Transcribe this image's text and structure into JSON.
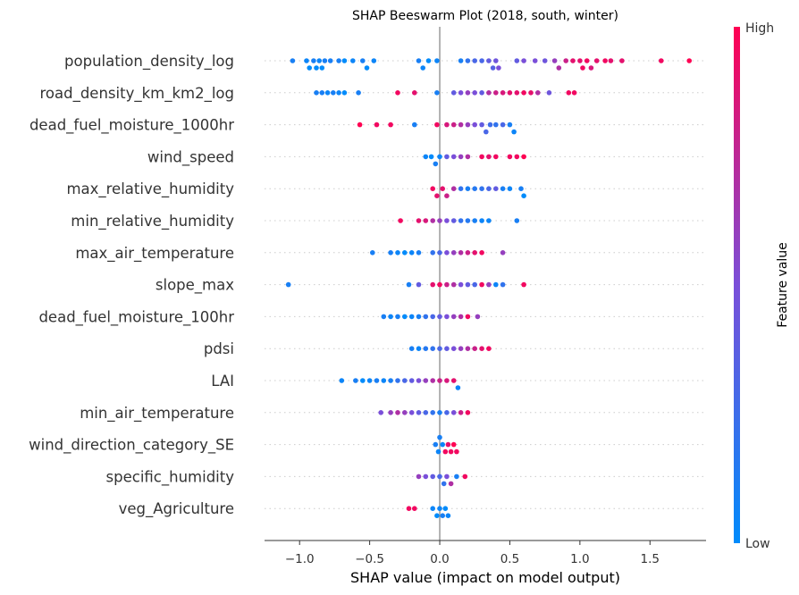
{
  "chart_data": {
    "type": "scatter",
    "subtype": "shap-beeswarm",
    "title": "SHAP Beeswarm Plot (2018, south, winter)",
    "xlabel": "SHAP value (impact on model output)",
    "xlim": [
      -1.25,
      1.9
    ],
    "xticks": [
      -1.0,
      -0.5,
      0.0,
      0.5,
      1.0,
      1.5
    ],
    "xtick_labels": [
      "−1.0",
      "−0.5",
      "0.0",
      "0.5",
      "1.0",
      "1.5"
    ],
    "colorbar": {
      "title": "Feature value",
      "high_label": "High",
      "low_label": "Low"
    },
    "colors": {
      "low": "#008bfb",
      "high": "#ff0052",
      "zero_line": "#999999"
    },
    "features": [
      {
        "name": "population_density_log",
        "points": [
          [
            -1.05,
            0.1
          ],
          [
            -0.95,
            0.05
          ],
          [
            -0.93,
            0.0
          ],
          [
            -0.9,
            0.1
          ],
          [
            -0.88,
            0.0
          ],
          [
            -0.86,
            0.05
          ],
          [
            -0.84,
            0.0
          ],
          [
            -0.82,
            0.1
          ],
          [
            -0.78,
            0.1
          ],
          [
            -0.72,
            0.1
          ],
          [
            -0.68,
            0.0
          ],
          [
            -0.62,
            0.05
          ],
          [
            -0.55,
            0.1
          ],
          [
            -0.52,
            0.0
          ],
          [
            -0.47,
            0.05
          ],
          [
            -0.15,
            0.1
          ],
          [
            -0.12,
            0.05
          ],
          [
            -0.08,
            0.0
          ],
          [
            -0.02,
            0.05
          ],
          [
            0.15,
            0.1
          ],
          [
            0.2,
            0.2
          ],
          [
            0.25,
            0.3
          ],
          [
            0.3,
            0.3
          ],
          [
            0.35,
            0.4
          ],
          [
            0.38,
            0.35
          ],
          [
            0.4,
            0.45
          ],
          [
            0.42,
            0.5
          ],
          [
            0.55,
            0.4
          ],
          [
            0.6,
            0.5
          ],
          [
            0.68,
            0.5
          ],
          [
            0.75,
            0.45
          ],
          [
            0.82,
            0.6
          ],
          [
            0.85,
            0.7
          ],
          [
            0.9,
            0.8
          ],
          [
            0.95,
            0.9
          ],
          [
            1.0,
            0.9
          ],
          [
            1.02,
            0.95
          ],
          [
            1.05,
            0.95
          ],
          [
            1.08,
            0.85
          ],
          [
            1.12,
            0.9
          ],
          [
            1.18,
            0.95
          ],
          [
            1.22,
            0.9
          ],
          [
            1.3,
            0.9
          ],
          [
            1.58,
            0.95
          ],
          [
            1.78,
            1.0
          ]
        ]
      },
      {
        "name": "road_density_km_km2_log",
        "points": [
          [
            -0.88,
            0.1
          ],
          [
            -0.84,
            0.1
          ],
          [
            -0.8,
            0.05
          ],
          [
            -0.76,
            0.1
          ],
          [
            -0.72,
            0.05
          ],
          [
            -0.68,
            0.0
          ],
          [
            -0.58,
            0.1
          ],
          [
            -0.3,
            0.95
          ],
          [
            -0.18,
            0.9
          ],
          [
            -0.02,
            0.1
          ],
          [
            0.1,
            0.4
          ],
          [
            0.15,
            0.5
          ],
          [
            0.2,
            0.6
          ],
          [
            0.25,
            0.5
          ],
          [
            0.3,
            0.4
          ],
          [
            0.35,
            0.7
          ],
          [
            0.4,
            0.8
          ],
          [
            0.45,
            0.85
          ],
          [
            0.5,
            0.9
          ],
          [
            0.55,
            0.9
          ],
          [
            0.6,
            0.95
          ],
          [
            0.65,
            0.9
          ],
          [
            0.7,
            0.7
          ],
          [
            0.78,
            0.45
          ],
          [
            0.92,
            0.95
          ],
          [
            0.96,
            0.95
          ]
        ]
      },
      {
        "name": "dead_fuel_moisture_1000hr",
        "points": [
          [
            -0.57,
            1.0
          ],
          [
            -0.45,
            0.95
          ],
          [
            -0.35,
            0.95
          ],
          [
            -0.18,
            0.1
          ],
          [
            -0.02,
            0.95
          ],
          [
            0.05,
            0.85
          ],
          [
            0.1,
            0.8
          ],
          [
            0.15,
            0.7
          ],
          [
            0.2,
            0.6
          ],
          [
            0.25,
            0.5
          ],
          [
            0.3,
            0.4
          ],
          [
            0.33,
            0.3
          ],
          [
            0.36,
            0.25
          ],
          [
            0.4,
            0.2
          ],
          [
            0.45,
            0.3
          ],
          [
            0.5,
            0.1
          ],
          [
            0.53,
            0.05
          ]
        ]
      },
      {
        "name": "wind_speed",
        "points": [
          [
            -0.1,
            0.05
          ],
          [
            -0.06,
            0.0
          ],
          [
            -0.03,
            0.1
          ],
          [
            0.0,
            0.05
          ],
          [
            0.05,
            0.4
          ],
          [
            0.1,
            0.5
          ],
          [
            0.15,
            0.6
          ],
          [
            0.2,
            0.7
          ],
          [
            0.3,
            0.95
          ],
          [
            0.35,
            0.9
          ],
          [
            0.4,
            0.95
          ],
          [
            0.5,
            0.95
          ],
          [
            0.55,
            0.95
          ],
          [
            0.6,
            1.0
          ]
        ]
      },
      {
        "name": "max_relative_humidity",
        "points": [
          [
            -0.05,
            0.95
          ],
          [
            -0.02,
            0.9
          ],
          [
            0.02,
            0.9
          ],
          [
            0.05,
            0.8
          ],
          [
            0.1,
            0.7
          ],
          [
            0.15,
            0.2
          ],
          [
            0.2,
            0.1
          ],
          [
            0.25,
            0.15
          ],
          [
            0.3,
            0.2
          ],
          [
            0.35,
            0.3
          ],
          [
            0.4,
            0.4
          ],
          [
            0.45,
            0.1
          ],
          [
            0.5,
            0.05
          ],
          [
            0.58,
            0.1
          ],
          [
            0.6,
            0.0
          ]
        ]
      },
      {
        "name": "min_relative_humidity",
        "points": [
          [
            -0.28,
            0.95
          ],
          [
            -0.15,
            0.9
          ],
          [
            -0.1,
            0.85
          ],
          [
            -0.05,
            0.7
          ],
          [
            0.0,
            0.6
          ],
          [
            0.05,
            0.5
          ],
          [
            0.1,
            0.4
          ],
          [
            0.15,
            0.2
          ],
          [
            0.2,
            0.15
          ],
          [
            0.25,
            0.1
          ],
          [
            0.3,
            0.05
          ],
          [
            0.35,
            0.05
          ],
          [
            0.55,
            0.1
          ]
        ]
      },
      {
        "name": "max_air_temperature",
        "points": [
          [
            -0.48,
            0.1
          ],
          [
            -0.35,
            0.1
          ],
          [
            -0.3,
            0.05
          ],
          [
            -0.25,
            0.0
          ],
          [
            -0.2,
            0.05
          ],
          [
            -0.15,
            0.1
          ],
          [
            -0.05,
            0.2
          ],
          [
            0.0,
            0.3
          ],
          [
            0.05,
            0.5
          ],
          [
            0.1,
            0.6
          ],
          [
            0.15,
            0.7
          ],
          [
            0.2,
            0.8
          ],
          [
            0.25,
            0.9
          ],
          [
            0.3,
            0.95
          ],
          [
            0.45,
            0.6
          ]
        ]
      },
      {
        "name": "slope_max",
        "points": [
          [
            -1.08,
            0.1
          ],
          [
            -0.22,
            0.1
          ],
          [
            -0.15,
            0.4
          ],
          [
            -0.05,
            0.9
          ],
          [
            0.0,
            0.95
          ],
          [
            0.05,
            0.8
          ],
          [
            0.1,
            0.7
          ],
          [
            0.15,
            0.5
          ],
          [
            0.2,
            0.4
          ],
          [
            0.25,
            0.3
          ],
          [
            0.3,
            0.95
          ],
          [
            0.35,
            0.6
          ],
          [
            0.4,
            0.05
          ],
          [
            0.45,
            0.2
          ],
          [
            0.6,
            0.95
          ]
        ]
      },
      {
        "name": "dead_fuel_moisture_100hr",
        "points": [
          [
            -0.4,
            0.1
          ],
          [
            -0.35,
            0.05
          ],
          [
            -0.3,
            0.1
          ],
          [
            -0.25,
            0.0
          ],
          [
            -0.2,
            0.05
          ],
          [
            -0.15,
            0.1
          ],
          [
            -0.1,
            0.2
          ],
          [
            -0.05,
            0.3
          ],
          [
            0.0,
            0.4
          ],
          [
            0.05,
            0.5
          ],
          [
            0.1,
            0.6
          ],
          [
            0.15,
            0.7
          ],
          [
            0.2,
            0.95
          ],
          [
            0.27,
            0.6
          ]
        ]
      },
      {
        "name": "pdsi",
        "points": [
          [
            -0.2,
            0.1
          ],
          [
            -0.15,
            0.05
          ],
          [
            -0.1,
            0.15
          ],
          [
            -0.05,
            0.2
          ],
          [
            0.0,
            0.3
          ],
          [
            0.05,
            0.4
          ],
          [
            0.1,
            0.5
          ],
          [
            0.15,
            0.6
          ],
          [
            0.2,
            0.7
          ],
          [
            0.25,
            0.8
          ],
          [
            0.3,
            0.9
          ],
          [
            0.35,
            0.95
          ]
        ]
      },
      {
        "name": "LAI",
        "points": [
          [
            -0.7,
            0.05
          ],
          [
            -0.6,
            0.1
          ],
          [
            -0.55,
            0.0
          ],
          [
            -0.5,
            0.05
          ],
          [
            -0.45,
            0.1
          ],
          [
            -0.4,
            0.05
          ],
          [
            -0.35,
            0.1
          ],
          [
            -0.3,
            0.2
          ],
          [
            -0.25,
            0.3
          ],
          [
            -0.2,
            0.4
          ],
          [
            -0.15,
            0.5
          ],
          [
            -0.1,
            0.6
          ],
          [
            -0.05,
            0.7
          ],
          [
            0.0,
            0.8
          ],
          [
            0.05,
            0.85
          ],
          [
            0.1,
            0.9
          ],
          [
            0.13,
            0.05
          ]
        ]
      },
      {
        "name": "min_air_temperature",
        "points": [
          [
            -0.42,
            0.5
          ],
          [
            -0.35,
            0.6
          ],
          [
            -0.3,
            0.7
          ],
          [
            -0.25,
            0.6
          ],
          [
            -0.2,
            0.5
          ],
          [
            -0.15,
            0.4
          ],
          [
            -0.1,
            0.3
          ],
          [
            -0.05,
            0.2
          ],
          [
            0.0,
            0.1
          ],
          [
            0.05,
            0.3
          ],
          [
            0.1,
            0.5
          ],
          [
            0.15,
            0.8
          ],
          [
            0.2,
            0.95
          ]
        ]
      },
      {
        "name": "wind_direction_category_SE",
        "points": [
          [
            -0.03,
            0.1
          ],
          [
            -0.01,
            0.05
          ],
          [
            0.0,
            0.1
          ],
          [
            0.02,
            0.05
          ],
          [
            0.04,
            0.95
          ],
          [
            0.06,
            0.9
          ],
          [
            0.08,
            0.95
          ],
          [
            0.1,
            1.0
          ],
          [
            0.12,
            0.95
          ]
        ]
      },
      {
        "name": "specific_humidity",
        "points": [
          [
            -0.15,
            0.6
          ],
          [
            -0.1,
            0.5
          ],
          [
            -0.05,
            0.4
          ],
          [
            0.0,
            0.3
          ],
          [
            0.03,
            0.2
          ],
          [
            0.05,
            0.5
          ],
          [
            0.08,
            0.7
          ],
          [
            0.12,
            0.1
          ],
          [
            0.18,
            0.95
          ]
        ]
      },
      {
        "name": "veg_Agriculture",
        "points": [
          [
            -0.22,
            0.95
          ],
          [
            -0.18,
            0.95
          ],
          [
            -0.05,
            0.05
          ],
          [
            -0.02,
            0.0
          ],
          [
            0.0,
            0.05
          ],
          [
            0.02,
            0.1
          ],
          [
            0.04,
            0.0
          ],
          [
            0.06,
            0.05
          ]
        ]
      }
    ]
  }
}
